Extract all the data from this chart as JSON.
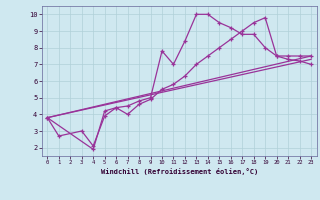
{
  "bg_color": "#cfe8f0",
  "grid_color": "#b0d0d8",
  "line_color": "#993399",
  "spine_color": "#666699",
  "tick_color": "#330033",
  "xlabel": "Windchill (Refroidissement éolien,°C)",
  "xlim": [
    -0.5,
    23.5
  ],
  "ylim": [
    1.5,
    10.5
  ],
  "xticks": [
    0,
    1,
    2,
    3,
    4,
    5,
    6,
    7,
    8,
    9,
    10,
    11,
    12,
    13,
    14,
    15,
    16,
    17,
    18,
    19,
    20,
    21,
    22,
    23
  ],
  "yticks": [
    2,
    3,
    4,
    5,
    6,
    7,
    8,
    9,
    10
  ],
  "line1_x": [
    0,
    1,
    3,
    4,
    5,
    6,
    7,
    8,
    9,
    10,
    11,
    12,
    13,
    14,
    15,
    16,
    17,
    18,
    19,
    20,
    21,
    22,
    23
  ],
  "line1_y": [
    3.8,
    2.7,
    3.0,
    2.1,
    3.9,
    4.4,
    4.5,
    4.8,
    5.0,
    7.8,
    7.0,
    8.4,
    10.0,
    10.0,
    9.5,
    9.2,
    8.8,
    8.8,
    8.0,
    7.5,
    7.5,
    7.5,
    7.5
  ],
  "line2_x": [
    0,
    4,
    5,
    6,
    7,
    8,
    9,
    10,
    11,
    12,
    13,
    14,
    15,
    16,
    17,
    18,
    19,
    20,
    21,
    22,
    23
  ],
  "line2_y": [
    3.8,
    1.9,
    4.2,
    4.4,
    4.0,
    4.6,
    4.9,
    5.5,
    5.8,
    6.3,
    7.0,
    7.5,
    8.0,
    8.5,
    9.0,
    9.5,
    9.8,
    7.5,
    7.3,
    7.2,
    7.0
  ],
  "line3_x": [
    0,
    23
  ],
  "line3_y": [
    3.8,
    7.5
  ],
  "line4_x": [
    0,
    23
  ],
  "line4_y": [
    3.8,
    7.3
  ]
}
